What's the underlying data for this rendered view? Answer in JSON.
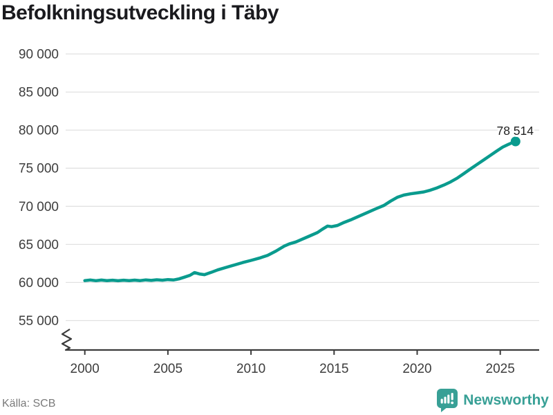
{
  "header": {
    "title": "Befolkningsutveckling i Täby"
  },
  "footer": {
    "source": "Källa: SCB",
    "brand": "Newsworthy"
  },
  "icons": {
    "brand_icon": "newsworthy-speech-bubble-bar-chart-icon"
  },
  "colors": {
    "line": "#0a9b8e",
    "brand": "#38a096",
    "grid": "#e1e1e1",
    "axis": "#3b3b3b",
    "text": "#3d3d3d",
    "title": "#1a1a1e",
    "muted": "#7a7a7a",
    "end_label": "#1f1f1f",
    "background": "#ffffff"
  },
  "chart_data": {
    "type": "line",
    "title": "Befolkningsutveckling i Täby",
    "xlabel": "",
    "ylabel": "",
    "grid": "horizontal",
    "legend": "none",
    "y_axis_break": true,
    "ylim_displayed": [
      55000,
      90000
    ],
    "xlim": [
      2000,
      2027.3
    ],
    "y_ticks": [
      {
        "value": 90000,
        "label": "90 000"
      },
      {
        "value": 85000,
        "label": "85 000"
      },
      {
        "value": 80000,
        "label": "80 000"
      },
      {
        "value": 75000,
        "label": "75 000"
      },
      {
        "value": 70000,
        "label": "70 000"
      },
      {
        "value": 65000,
        "label": "65 000"
      },
      {
        "value": 60000,
        "label": "60 000"
      },
      {
        "value": 55000,
        "label": "55 000"
      }
    ],
    "x_ticks": [
      {
        "value": 2000,
        "label": "2000"
      },
      {
        "value": 2005,
        "label": "2005"
      },
      {
        "value": 2010,
        "label": "2010"
      },
      {
        "value": 2015,
        "label": "2015"
      },
      {
        "value": 2020,
        "label": "2020"
      },
      {
        "value": 2025,
        "label": "2025"
      }
    ],
    "end_label": "78 514",
    "end_value": 78514,
    "series": [
      {
        "points": [
          [
            2000.0,
            60250
          ],
          [
            2000.33,
            60330
          ],
          [
            2000.67,
            60240
          ],
          [
            2001.0,
            60320
          ],
          [
            2001.33,
            60250
          ],
          [
            2001.67,
            60300
          ],
          [
            2002.0,
            60230
          ],
          [
            2002.33,
            60300
          ],
          [
            2002.67,
            60240
          ],
          [
            2003.0,
            60310
          ],
          [
            2003.33,
            60250
          ],
          [
            2003.67,
            60340
          ],
          [
            2004.0,
            60270
          ],
          [
            2004.33,
            60360
          ],
          [
            2004.67,
            60300
          ],
          [
            2005.0,
            60380
          ],
          [
            2005.33,
            60330
          ],
          [
            2005.67,
            60470
          ],
          [
            2006.0,
            60700
          ],
          [
            2006.33,
            60950
          ],
          [
            2006.6,
            61300
          ],
          [
            2006.9,
            61120
          ],
          [
            2007.2,
            61030
          ],
          [
            2007.6,
            61330
          ],
          [
            2008.0,
            61650
          ],
          [
            2008.5,
            61980
          ],
          [
            2009.0,
            62300
          ],
          [
            2009.5,
            62620
          ],
          [
            2010.0,
            62900
          ],
          [
            2010.5,
            63200
          ],
          [
            2011.0,
            63560
          ],
          [
            2011.5,
            64120
          ],
          [
            2012.0,
            64780
          ],
          [
            2012.3,
            65060
          ],
          [
            2012.7,
            65320
          ],
          [
            2013.0,
            65600
          ],
          [
            2013.5,
            66080
          ],
          [
            2014.0,
            66560
          ],
          [
            2014.3,
            67000
          ],
          [
            2014.6,
            67400
          ],
          [
            2014.85,
            67330
          ],
          [
            2015.2,
            67480
          ],
          [
            2015.6,
            67880
          ],
          [
            2016.0,
            68220
          ],
          [
            2016.5,
            68700
          ],
          [
            2017.0,
            69180
          ],
          [
            2017.5,
            69660
          ],
          [
            2018.0,
            70120
          ],
          [
            2018.4,
            70680
          ],
          [
            2018.8,
            71180
          ],
          [
            2019.2,
            71480
          ],
          [
            2019.6,
            71640
          ],
          [
            2020.0,
            71760
          ],
          [
            2020.4,
            71890
          ],
          [
            2020.8,
            72120
          ],
          [
            2021.2,
            72420
          ],
          [
            2021.6,
            72790
          ],
          [
            2022.0,
            73190
          ],
          [
            2022.4,
            73680
          ],
          [
            2022.8,
            74280
          ],
          [
            2023.2,
            74890
          ],
          [
            2023.6,
            75490
          ],
          [
            2024.0,
            76080
          ],
          [
            2024.4,
            76680
          ],
          [
            2024.8,
            77280
          ],
          [
            2025.15,
            77780
          ],
          [
            2025.45,
            78090
          ],
          [
            2025.7,
            78330
          ],
          [
            2025.92,
            78514
          ]
        ]
      }
    ]
  }
}
